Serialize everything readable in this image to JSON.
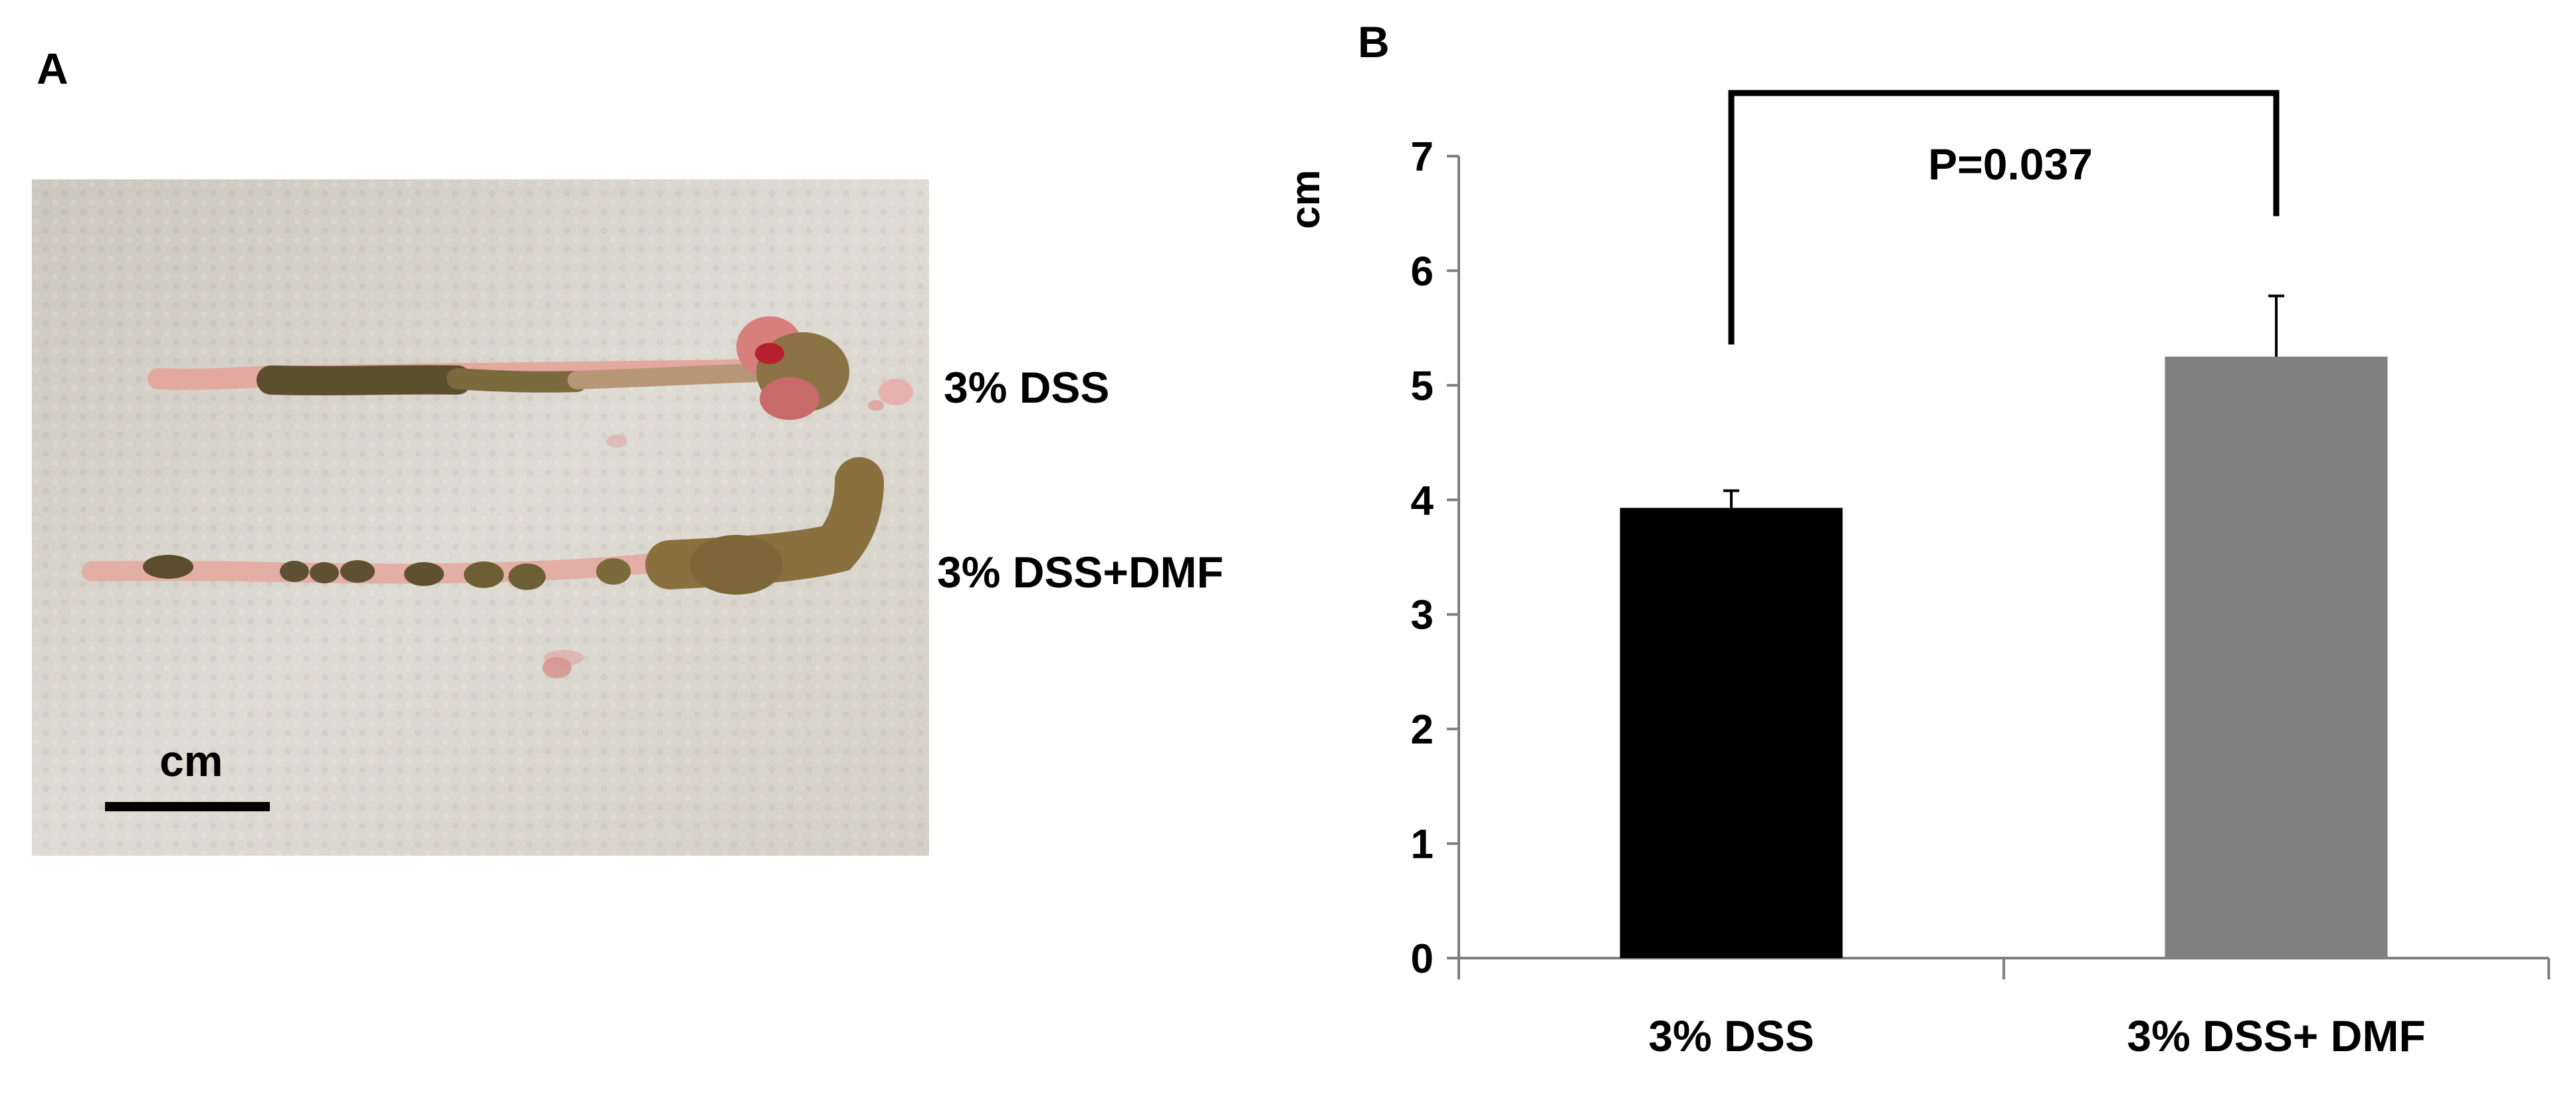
{
  "panel_a": {
    "letter": "A",
    "labels": [
      "3% DSS",
      "3% DSS+DMF"
    ],
    "scale_bar_label": "cm"
  },
  "panel_b": {
    "letter": "B"
  },
  "colors": {
    "bar_dss": "#000000",
    "bar_dss_dmf": "#808080",
    "axis": "#7f7f7f",
    "photo_background": "#d9d6cd"
  },
  "chart_data": {
    "type": "bar",
    "categories": [
      "3% DSS",
      "3% DSS+ DMF"
    ],
    "values": [
      3.93,
      5.25
    ],
    "error_bars": [
      0.15,
      0.53
    ],
    "title": "",
    "xlabel": "",
    "ylabel": "cm",
    "ylim": [
      0,
      7
    ],
    "yticks": [
      0,
      1,
      2,
      3,
      4,
      5,
      6,
      7
    ],
    "grid": false,
    "annotation": {
      "text": "P=0.037",
      "compares": [
        0,
        1
      ]
    }
  }
}
